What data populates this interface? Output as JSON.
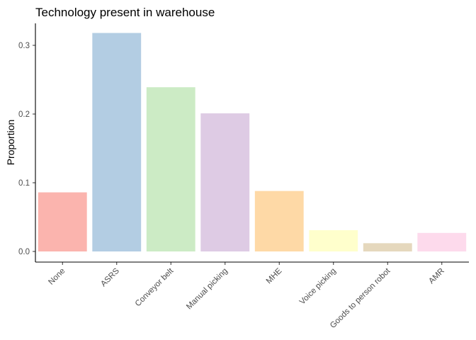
{
  "chart_data": {
    "type": "bar",
    "title": "Technology present in warehouse",
    "xlabel": "",
    "ylabel": "Proportion",
    "categories": [
      "None",
      "ASRS",
      "Conveyor belt",
      "Manual picking",
      "MHE",
      "Voice picking",
      "Goods to person robot",
      "AMR"
    ],
    "values": [
      0.086,
      0.318,
      0.239,
      0.201,
      0.088,
      0.031,
      0.012,
      0.027
    ],
    "colors": [
      "#FBB4AE",
      "#B3CDE3",
      "#CCEBC5",
      "#DECBE4",
      "#FED9A6",
      "#FFFFCC",
      "#E5D8BD",
      "#FDDAEC"
    ],
    "ylim": [
      0,
      0.3
    ],
    "yticks": [
      0.0,
      0.1,
      0.2,
      0.3
    ],
    "ytick_labels": [
      "0.0",
      "0.1",
      "0.2",
      "0.3"
    ],
    "grid": false,
    "legend": "none"
  }
}
